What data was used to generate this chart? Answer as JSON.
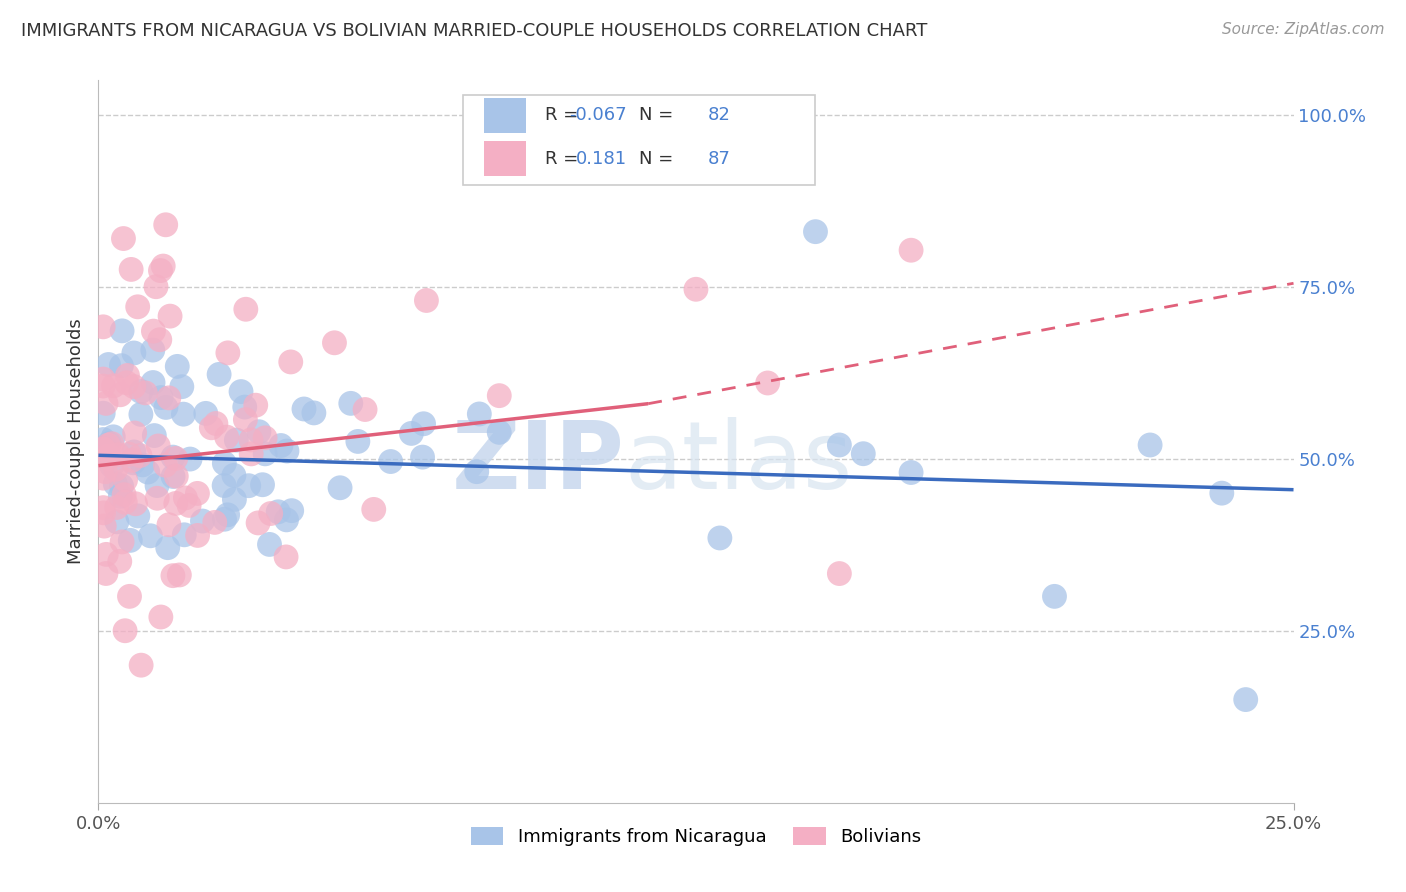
{
  "title": "IMMIGRANTS FROM NICARAGUA VS BOLIVIAN MARRIED-COUPLE HOUSEHOLDS CORRELATION CHART",
  "source": "Source: ZipAtlas.com",
  "ylabel": "Married-couple Households",
  "legend_blue_label": "Immigrants from Nicaragua",
  "legend_pink_label": "Bolivians",
  "r_blue": -0.067,
  "n_blue": 82,
  "r_pink": 0.181,
  "n_pink": 87,
  "blue_color": "#a8c4e8",
  "pink_color": "#f4afc4",
  "blue_line_color": "#3a6bbf",
  "pink_line_color": "#e0607a",
  "watermark_zip": "ZIP",
  "watermark_atlas": "atlas",
  "xlim": [
    0.0,
    0.25
  ],
  "ylim": [
    0.0,
    1.05
  ],
  "yticks_right": [
    0.25,
    0.5,
    0.75,
    1.0
  ],
  "ytick_labels_right": [
    "25.0%",
    "50.0%",
    "75.0%",
    "100.0%"
  ],
  "xtick_labels": [
    "0.0%",
    "25.0%"
  ],
  "background_color": "#ffffff",
  "grid_color": "#cccccc",
  "title_color": "#333333",
  "source_color": "#999999",
  "axis_label_color": "#333333",
  "tick_color_blue": "#4a80d0"
}
